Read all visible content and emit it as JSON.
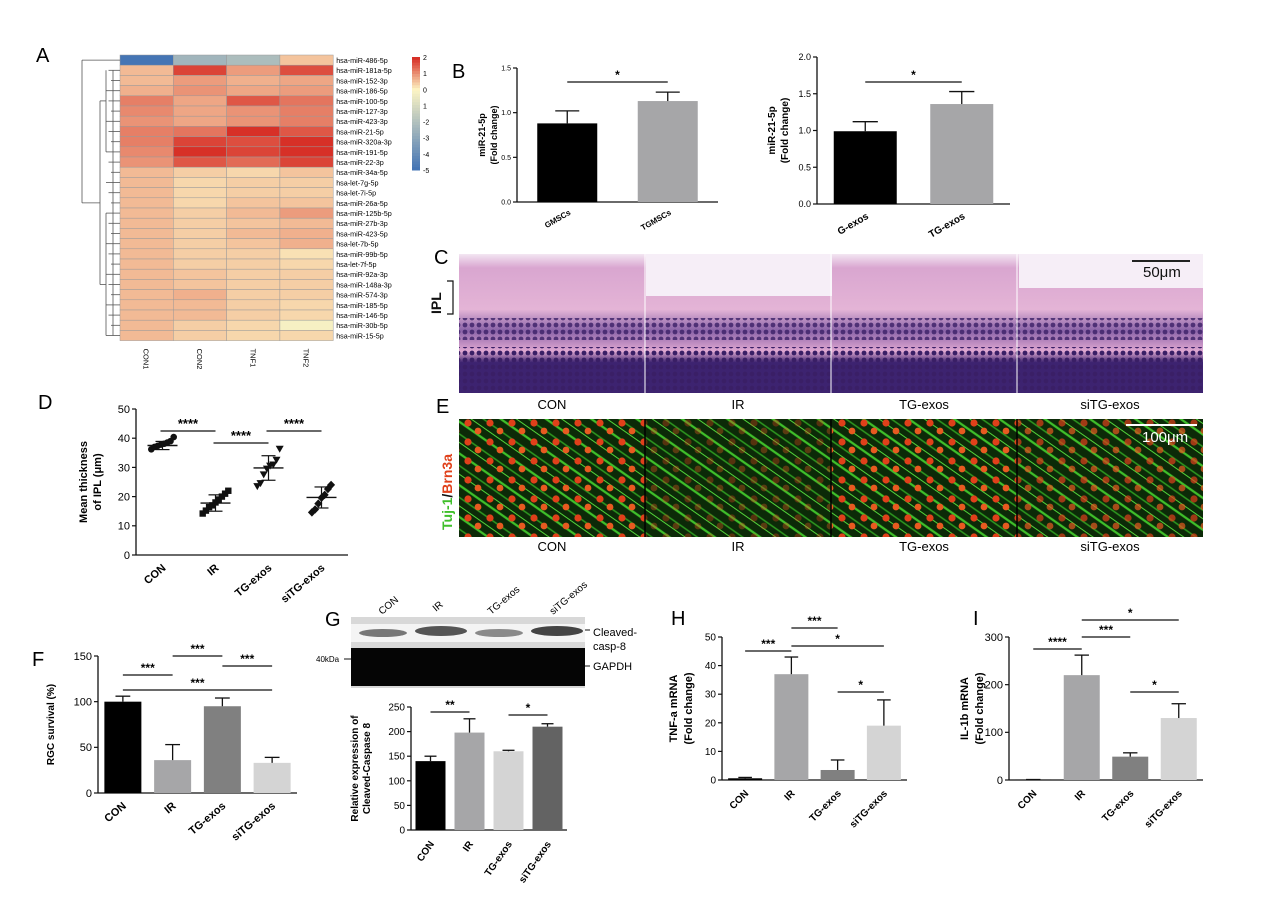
{
  "panel_letters": {
    "A": "A",
    "B": "B",
    "C": "C",
    "D": "D",
    "E": "E",
    "F": "F",
    "G": "G",
    "H": "H",
    "I": "I"
  },
  "heatmap": {
    "columns": [
      "CON1",
      "CON2",
      "TNF1",
      "TNF2"
    ],
    "rows": [
      {
        "label": "hsa-miR-486-5p",
        "values": [
          -5,
          -2.5,
          -2.2,
          0.5
        ]
      },
      {
        "label": "hsa-miR-181a-5p",
        "values": [
          0.6,
          1.8,
          0.9,
          1.7
        ]
      },
      {
        "label": "hsa-miR-152-3p",
        "values": [
          0.6,
          0.9,
          0.7,
          0.8
        ]
      },
      {
        "label": "hsa-miR-186-5p",
        "values": [
          0.7,
          1.0,
          0.8,
          0.9
        ]
      },
      {
        "label": "hsa-miR-100-5p",
        "values": [
          1.2,
          0.8,
          1.6,
          1.3
        ]
      },
      {
        "label": "hsa-miR-127-3p",
        "values": [
          1.1,
          0.8,
          1.0,
          1.2
        ]
      },
      {
        "label": "hsa-miR-423-3p",
        "values": [
          1.0,
          0.8,
          1.0,
          1.2
        ]
      },
      {
        "label": "hsa-miR-21-5p",
        "values": [
          1.2,
          1.3,
          2.0,
          1.6
        ]
      },
      {
        "label": "hsa-miR-320a-3p",
        "values": [
          1.2,
          1.8,
          1.7,
          2.0
        ]
      },
      {
        "label": "hsa-miR-191-5p",
        "values": [
          1.1,
          2.0,
          1.8,
          2.0
        ]
      },
      {
        "label": "hsa-miR-22-3p",
        "values": [
          1.0,
          1.6,
          1.4,
          1.8
        ]
      },
      {
        "label": "hsa-miR-34a-5p",
        "values": [
          0.6,
          0.4,
          0.3,
          0.5
        ]
      },
      {
        "label": "hsa-let-7g-5p",
        "values": [
          0.6,
          0.3,
          0.4,
          0.4
        ]
      },
      {
        "label": "hsa-let-7i-5p",
        "values": [
          0.6,
          0.3,
          0.4,
          0.4
        ]
      },
      {
        "label": "hsa-miR-26a-5p",
        "values": [
          0.6,
          0.3,
          0.5,
          0.5
        ]
      },
      {
        "label": "hsa-miR-125b-5p",
        "values": [
          0.6,
          0.4,
          0.6,
          0.9
        ]
      },
      {
        "label": "hsa-miR-27b-3p",
        "values": [
          0.6,
          0.4,
          0.5,
          0.6
        ]
      },
      {
        "label": "hsa-miR-423-5p",
        "values": [
          0.6,
          0.4,
          0.6,
          0.7
        ]
      },
      {
        "label": "hsa-let-7b-5p",
        "values": [
          0.6,
          0.4,
          0.5,
          0.7
        ]
      },
      {
        "label": "hsa-miR-99b-5p",
        "values": [
          0.6,
          0.4,
          0.4,
          0.2
        ]
      },
      {
        "label": "hsa-let-7f-5p",
        "values": [
          0.6,
          0.4,
          0.4,
          0.3
        ]
      },
      {
        "label": "hsa-miR-92a-3p",
        "values": [
          0.6,
          0.5,
          0.4,
          0.4
        ]
      },
      {
        "label": "hsa-miR-148a-3p",
        "values": [
          0.6,
          0.5,
          0.4,
          0.4
        ]
      },
      {
        "label": "hsa-miR-574-3p",
        "values": [
          0.6,
          0.7,
          0.4,
          0.4
        ]
      },
      {
        "label": "hsa-miR-185-5p",
        "values": [
          0.6,
          0.6,
          0.4,
          0.3
        ]
      },
      {
        "label": "hsa-miR-146-5p",
        "values": [
          0.6,
          0.6,
          0.4,
          0.3
        ]
      },
      {
        "label": "hsa-miR-30b-5p",
        "values": [
          0.6,
          0.4,
          0.3,
          -0.2
        ]
      },
      {
        "label": "hsa-miR-15-5p",
        "values": [
          0.6,
          0.4,
          0.3,
          0.3
        ]
      }
    ],
    "scale": {
      "ticks": [
        "2",
        "1",
        "0",
        "1",
        "-2",
        "-3",
        "-4",
        "-5"
      ],
      "max": 2,
      "min": -5
    },
    "colors": {
      "high": "#d73027",
      "mid": "#fdf5c4",
      "low": "#4575b4"
    }
  },
  "micrographs": {
    "C": {
      "scale_bar": "50μm",
      "ipl_label": "IPL",
      "groups": [
        "CON",
        "IR",
        "TG-exos",
        "siTG-exos"
      ],
      "colors": {
        "pink": "#e4b4d6",
        "purple": "#3d2370"
      }
    },
    "E": {
      "scale_bar": "100μm",
      "ylabel_green": "Tuj-1",
      "ylabel_slash": "/",
      "ylabel_red": "Brn3a",
      "groups": [
        "CON",
        "IR",
        "TG-exos",
        "siTG-exos"
      ],
      "colors": {
        "green": "#3fbf2a",
        "red": "#e0401a"
      }
    }
  },
  "gel": {
    "lanes": [
      "CON",
      "IR",
      "TG-exos",
      "siTG-exos"
    ],
    "marker": "40kDa",
    "band_labels": [
      "Cleaved-",
      "casp-8",
      "GAPDH"
    ]
  },
  "chart_data": [
    {
      "id": "B1",
      "type": "bar",
      "categories": [
        "GMSCs",
        "TGMSCs"
      ],
      "values": [
        0.88,
        1.13
      ],
      "errors": [
        0.14,
        0.1
      ],
      "colors": [
        "#000000",
        "#a6a6a8"
      ],
      "title": "",
      "xlabel": "",
      "ylabel": "miR-21-5p",
      "ylabel2": "(Fold change)",
      "ylim": [
        0,
        1.5
      ],
      "ticks": [
        "0.0",
        "0.5",
        "1.0",
        "1.5"
      ],
      "sig": [
        {
          "text": "*",
          "from": 0,
          "to": 1
        }
      ]
    },
    {
      "id": "B2",
      "type": "bar",
      "categories": [
        "G-exos",
        "TG-exos"
      ],
      "values": [
        0.99,
        1.36
      ],
      "errors": [
        0.13,
        0.17
      ],
      "colors": [
        "#000000",
        "#a6a6a8"
      ],
      "title": "",
      "xlabel": "",
      "ylabel": "miR-21-5p",
      "ylabel2": "(Fold change)",
      "ylim": [
        0,
        2.0
      ],
      "ticks": [
        "0.0",
        "0.5",
        "1.0",
        "1.5",
        "2.0"
      ],
      "sig": [
        {
          "text": "*",
          "from": 0,
          "to": 1
        }
      ]
    },
    {
      "id": "D",
      "type": "scatter",
      "categories": [
        "CON",
        "IR",
        "TG-exos",
        "siTG-exos"
      ],
      "means": [
        37.5,
        17.8,
        29.8,
        19.7
      ],
      "sds": [
        1.4,
        2.8,
        4.2,
        3.6
      ],
      "points": [
        [
          36.2,
          37.0,
          37.4,
          37.8,
          38.1,
          38.5,
          39.0,
          40.4
        ],
        [
          14.2,
          15.2,
          16.4,
          17.0,
          18.0,
          19.0,
          20.0,
          21.0,
          22.0
        ],
        [
          23.6,
          24.6,
          27.6,
          29.6,
          30.6,
          31.0,
          32.6,
          36.4
        ],
        [
          14.6,
          15.6,
          17.6,
          19.6,
          20.6,
          22.6,
          24.0
        ]
      ],
      "markers": [
        "circle",
        "square",
        "triangle-down",
        "diamond"
      ],
      "title": "",
      "xlabel": "",
      "ylabel": "Mean thickness",
      "ylabel2": "of IPL (μm)",
      "ylim": [
        0,
        50
      ],
      "ticks": [
        "0",
        "10",
        "20",
        "30",
        "40",
        "50"
      ],
      "sig": [
        {
          "text": "****",
          "from": 0,
          "to": 1,
          "level": 0
        },
        {
          "text": "****",
          "from": 1,
          "to": 2,
          "level": 1
        },
        {
          "text": "****",
          "from": 2,
          "to": 3,
          "level": 0
        }
      ]
    },
    {
      "id": "F",
      "type": "bar",
      "categories": [
        "CON",
        "IR",
        "TG-exos",
        "siTG-exos"
      ],
      "values": [
        100,
        36,
        95,
        33
      ],
      "errors": [
        6,
        17,
        9,
        6
      ],
      "colors": [
        "#000000",
        "#a6a6a8",
        "#808080",
        "#d4d4d4"
      ],
      "title": "",
      "xlabel": "",
      "ylabel": "RGC survival (%)",
      "ylim": [
        0,
        150
      ],
      "ticks": [
        "0",
        "50",
        "100",
        "150"
      ],
      "sig": [
        {
          "text": "***",
          "from": 0,
          "to": 1,
          "level": 1
        },
        {
          "text": "***",
          "from": 1,
          "to": 2,
          "level": 2
        },
        {
          "text": "***",
          "from": 2,
          "to": 3,
          "level": 1
        },
        {
          "text": "***",
          "from": 0,
          "to": 3,
          "level": 0
        }
      ]
    },
    {
      "id": "G",
      "type": "bar",
      "categories": [
        "CON",
        "IR",
        "TG-exos",
        "siTG-exos"
      ],
      "values": [
        140,
        198,
        160,
        210
      ],
      "errors": [
        10,
        28,
        2,
        6
      ],
      "colors": [
        "#000000",
        "#a6a6a8",
        "#d4d4d4",
        "#636363"
      ],
      "title": "",
      "xlabel": "",
      "ylabel": "Relative expression of",
      "ylabel2": "Cleaved-Caspase 8",
      "ylim": [
        0,
        250
      ],
      "ticks": [
        "0",
        "50",
        "100",
        "150",
        "200",
        "250"
      ],
      "sig": [
        {
          "text": "**",
          "from": 0,
          "to": 1,
          "level": 0
        },
        {
          "text": "*",
          "from": 2,
          "to": 3,
          "level": 0
        }
      ]
    },
    {
      "id": "H",
      "type": "bar",
      "categories": [
        "CON",
        "IR",
        "TG-exos",
        "siTG-exos"
      ],
      "values": [
        0.6,
        37,
        3.5,
        19
      ],
      "errors": [
        0.3,
        6,
        3.5,
        9
      ],
      "colors": [
        "#000000",
        "#a6a6a8",
        "#808080",
        "#d4d4d4"
      ],
      "title": "",
      "xlabel": "",
      "ylabel": "TNF-a mRNA",
      "ylabel2": "(Fold change)",
      "ylim": [
        0,
        50
      ],
      "ticks": [
        "0",
        "10",
        "20",
        "30",
        "40",
        "50"
      ],
      "sig": [
        {
          "text": "***",
          "from": 0,
          "to": 1,
          "level": 1
        },
        {
          "text": "***",
          "from": 1,
          "to": 2,
          "level": 2
        },
        {
          "text": "*",
          "from": 1,
          "to": 3,
          "level": 0
        },
        {
          "text": "*",
          "from": 2,
          "to": 3,
          "level": 3
        }
      ]
    },
    {
      "id": "I",
      "type": "bar",
      "categories": [
        "CON",
        "IR",
        "TG-exos",
        "siTG-exos"
      ],
      "values": [
        0.5,
        220,
        49,
        130
      ],
      "errors": [
        0.5,
        42,
        8,
        30
      ],
      "colors": [
        "#000000",
        "#a6a6a8",
        "#808080",
        "#d4d4d4"
      ],
      "title": "",
      "xlabel": "",
      "ylabel": "IL-1b mRNA",
      "ylabel2": "(Fold change)",
      "ylim": [
        0,
        300
      ],
      "ticks": [
        "0",
        "100",
        "200",
        "300"
      ],
      "sig": [
        {
          "text": "****",
          "from": 0,
          "to": 1,
          "level": 1
        },
        {
          "text": "***",
          "from": 1,
          "to": 2,
          "level": 2
        },
        {
          "text": "*",
          "from": 1,
          "to": 3,
          "level": 0
        },
        {
          "text": "*",
          "from": 2,
          "to": 3,
          "level": 3
        }
      ]
    }
  ]
}
